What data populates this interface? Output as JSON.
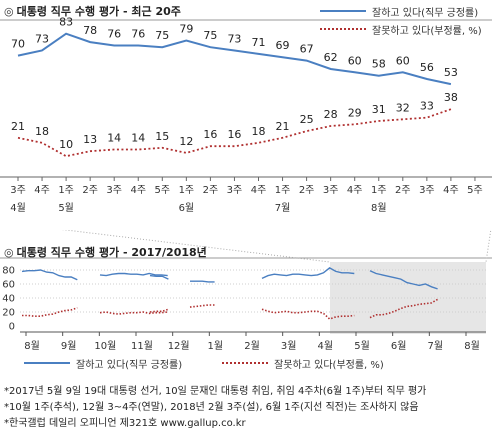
{
  "chart_data": [
    {
      "type": "line",
      "title": "대통령 직무 수행 평가 - 최근 20주",
      "title_mark": "◎",
      "categories": [
        [
          "3주",
          "4월"
        ],
        [
          "4주",
          ""
        ],
        [
          "1주",
          "5월"
        ],
        [
          "2주",
          ""
        ],
        [
          "3주",
          ""
        ],
        [
          "4주",
          ""
        ],
        [
          "5주",
          ""
        ],
        [
          "1주",
          "6월"
        ],
        [
          "2주",
          ""
        ],
        [
          "3주",
          ""
        ],
        [
          "4주",
          ""
        ],
        [
          "1주",
          "7월"
        ],
        [
          "2주",
          ""
        ],
        [
          "3주",
          ""
        ],
        [
          "4주",
          ""
        ],
        [
          "1주",
          "8월"
        ],
        [
          "2주",
          ""
        ],
        [
          "3주",
          ""
        ],
        [
          "4주",
          ""
        ],
        [
          "5주",
          ""
        ]
      ],
      "series": [
        {
          "name": "잘하고 있다(직무 긍정률)",
          "color": "#4a7fc1",
          "style": "solid",
          "values": [
            70,
            73,
            83,
            78,
            76,
            76,
            75,
            79,
            75,
            73,
            71,
            69,
            67,
            62,
            60,
            58,
            60,
            56,
            53,
            null
          ]
        },
        {
          "name": "잘못하고 있다(부정률, %)",
          "color": "#b03030",
          "style": "dotted",
          "values": [
            21,
            18,
            10,
            13,
            14,
            14,
            15,
            12,
            16,
            16,
            18,
            21,
            25,
            28,
            29,
            31,
            32,
            33,
            38,
            null
          ]
        }
      ],
      "legend_position": "top-right"
    },
    {
      "type": "line",
      "title": "대통령 직무 수행 평가 - 2017/2018년",
      "title_mark": "◎",
      "yticks": [
        0,
        20,
        40,
        60,
        80
      ],
      "ylim": [
        0,
        90
      ],
      "month_labels": [
        "8월",
        "9월",
        "10월",
        "11월",
        "12월",
        "1월",
        "2월",
        "3월",
        "4월",
        "5월",
        "6월",
        "7월",
        "8월"
      ],
      "series": [
        {
          "name": "잘하고 있다(직무 긍정률)",
          "color": "#4a7fc1",
          "style": "solid",
          "segments": [
            [
              78,
              79,
              79,
              80,
              77,
              76,
              72,
              70,
              70,
              66
            ],
            [
              73,
              72,
              74,
              75,
              75,
              74,
              74,
              73,
              75,
              73,
              73,
              72
            ],
            [
              72,
              71,
              71,
              67
            ],
            [
              64,
              64,
              64,
              63,
              63
            ],
            [
              68,
              72,
              74,
              73,
              72,
              74,
              74,
              73,
              72,
              73,
              76,
              83,
              78,
              76,
              76,
              75
            ],
            [
              79,
              75,
              73,
              71,
              69,
              67,
              62,
              60,
              58,
              60,
              56,
              53
            ]
          ]
        },
        {
          "name": "잘못하고 있다(부정률, %)",
          "color": "#b03030",
          "style": "dotted",
          "segments": [
            [
              15,
              15,
              14,
              14,
              16,
              17,
              20,
              22,
              23,
              26
            ],
            [
              19,
              20,
              18,
              17,
              18,
              19,
              19,
              20,
              18,
              19,
              19,
              20
            ],
            [
              20,
              21,
              21,
              24
            ],
            [
              27,
              28,
              29,
              30,
              30
            ],
            [
              24,
              21,
              19,
              20,
              21,
              19,
              19,
              20,
              21,
              21,
              18,
              10,
              13,
              14,
              14,
              15
            ],
            [
              12,
              16,
              16,
              18,
              21,
              25,
              28,
              29,
              31,
              32,
              33,
              38
            ]
          ]
        }
      ],
      "highlight": "recent 20 weeks",
      "legend_position": "bottom"
    }
  ],
  "notes": [
    "*2017년 5월 9일 19대 대통령 선거, 10일 문재인 대통령 취임, 취임 4주차(6월 1주)부터 직무 평가",
    "*10월 1주(추석), 12월 3~4주(연말), 2018년 2월 3주(설), 6월 1주(지선 직전)는 조사하지 않음",
    "*한국갤럽 데일리 오피니언 제321호 www.gallup.co.kr"
  ]
}
